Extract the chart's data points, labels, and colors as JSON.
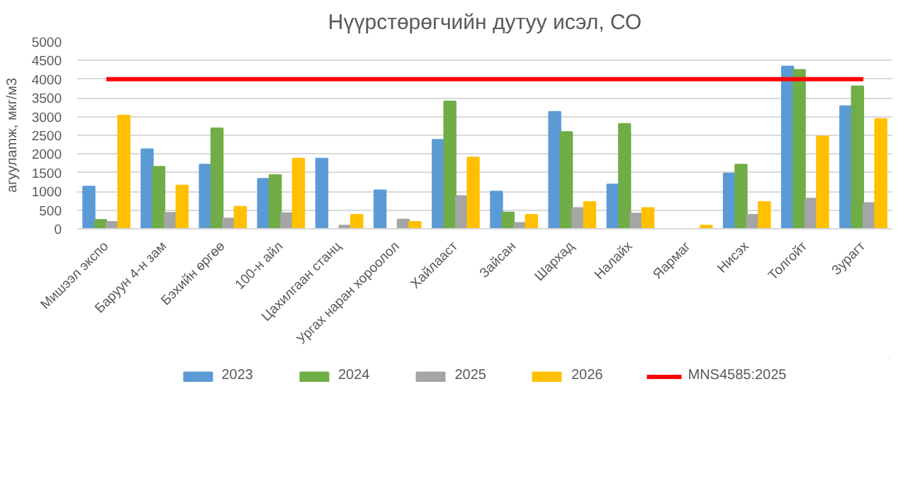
{
  "chart_data": {
    "type": "bar",
    "title": "Нүүрстөрөгчийн дутуу исэл, СО",
    "ylabel": "агуулamж, мкг/м3",
    "categories": [
      "Мишээл экспо",
      "Баруун 4-н зам",
      "Бэхийн өргөө",
      "100-н айл",
      "Цахилгаан станц",
      "Ургах наран хороолол",
      "Хайлааст",
      "Зайсан",
      "Шархад",
      "Налайх",
      "Яармаг",
      "Нисэх",
      "Толгойт",
      "Зурагт"
    ],
    "series": [
      {
        "name": "2023",
        "color": "#5b9bd5",
        "values": [
          1130,
          2130,
          1720,
          1340,
          1880,
          1030,
          2380,
          1000,
          3130,
          1190,
          null,
          1480,
          4340,
          3280
        ]
      },
      {
        "name": "2024",
        "color": "#70ad47",
        "values": [
          240,
          1660,
          2690,
          1440,
          null,
          null,
          3410,
          440,
          2590,
          2810,
          null,
          1720,
          4250,
          3810
        ]
      },
      {
        "name": "2025",
        "color": "#a5a5a5",
        "values": [
          190,
          430,
          280,
          420,
          90,
          250,
          880,
          160,
          560,
          410,
          null,
          380,
          810,
          690
        ]
      },
      {
        "name": "2026",
        "color": "#ffc000",
        "values": [
          3030,
          1160,
          590,
          1880,
          380,
          190,
          1910,
          380,
          720,
          560,
          90,
          720,
          2470,
          2940
        ]
      },
      {
        "name": "MNS4585:2025",
        "type": "line",
        "color": "#ff0000",
        "values": [
          4000,
          4000,
          4000,
          4000,
          4000,
          4000,
          4000,
          4000,
          4000,
          4000,
          4000,
          4000,
          4000,
          4000
        ]
      }
    ],
    "ylim": [
      0,
      5000
    ],
    "yticks": [
      0,
      500,
      1000,
      1500,
      2000,
      2500,
      3000,
      3500,
      4000,
      4500,
      5000
    ],
    "grid": "y",
    "legend": "bottom"
  }
}
